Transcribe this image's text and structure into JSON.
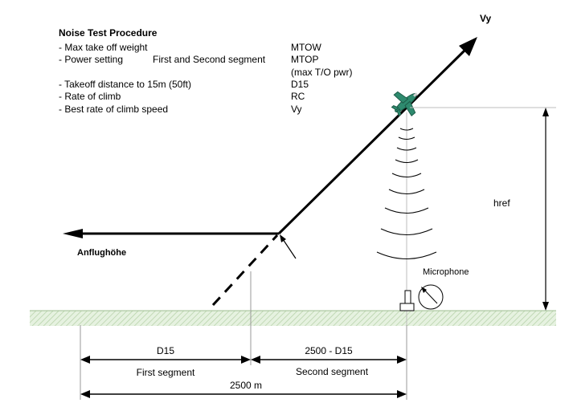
{
  "procedure": {
    "title": "Noise Test Procedure",
    "rows": [
      {
        "label": "- Max take off weight",
        "sub": "",
        "value": "MTOW"
      },
      {
        "label": "- Power setting",
        "sub": "First and Second segment",
        "value": "MTOP"
      },
      {
        "label": "",
        "sub": "",
        "value": "(max T/O pwr)"
      },
      {
        "label": "- Takeoff distance to 15m (50ft)",
        "sub": "",
        "value": "D15"
      },
      {
        "label": "- Rate of climb",
        "sub": "",
        "value": "RC"
      },
      {
        "label": "- Best rate of climb speed",
        "sub": "",
        "value": "Vy"
      }
    ]
  },
  "labels": {
    "vy": "Vy",
    "href": "href",
    "approach": "Anflughöhe",
    "microphone": "Microphone"
  },
  "dimensions": {
    "d15": "D15",
    "d15_rest": "2500 - D15",
    "first_segment": "First segment",
    "second_segment": "Second segment",
    "total": "2500 m"
  },
  "colors": {
    "ground": "#e6f2e0",
    "ground_hatch": "#b9d3ac",
    "aircraft": "#2e8a6e",
    "line": "#000000"
  },
  "icons": [
    "aircraft-icon",
    "microphone-icon",
    "sound-wave-icon"
  ]
}
